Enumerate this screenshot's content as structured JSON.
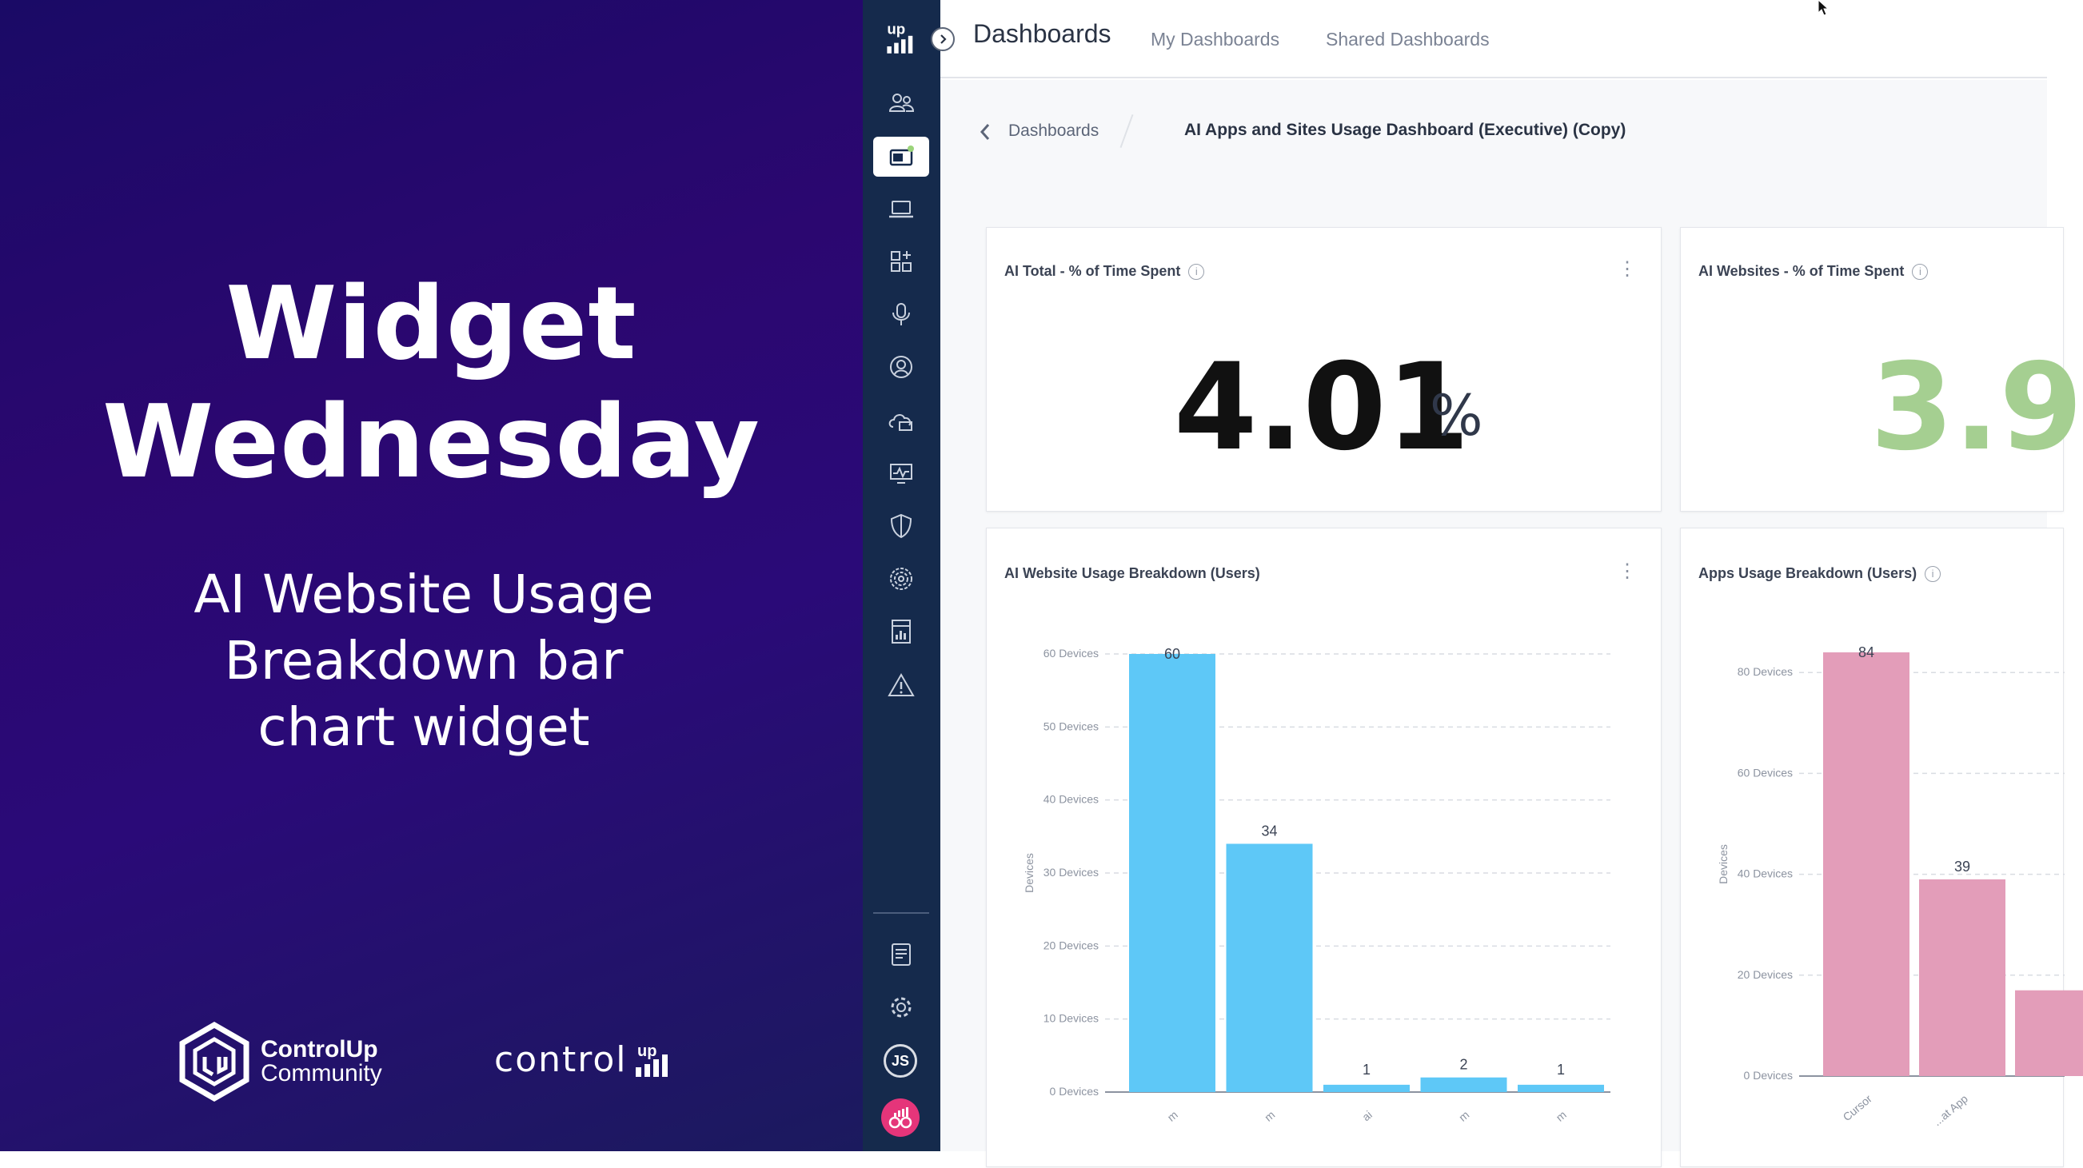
{
  "promo": {
    "title_line1": "Widget",
    "title_line2": "Wednesday",
    "subtitle_line1": "AI Website Usage",
    "subtitle_line2": "Breakdown bar",
    "subtitle_line3": "chart widget",
    "community_brand": "ControlUp",
    "community_label": "Community",
    "logo_word": "control"
  },
  "sidebar": {
    "items": [
      "users-icon",
      "dashboards-icon",
      "devices-icon",
      "apps-icon",
      "voice-icon",
      "user-profile-icon",
      "cloud-icon",
      "monitor-icon",
      "security-icon",
      "fingerprint-icon",
      "reports-icon",
      "alerts-icon"
    ],
    "bottom_items": [
      "logs-icon",
      "settings-icon"
    ],
    "user_initials": "JS"
  },
  "header": {
    "title": "Dashboards",
    "tabs": [
      "My Dashboards",
      "Shared Dashboards"
    ]
  },
  "breadcrumb": {
    "parent": "Dashboards",
    "current": "AI Apps and Sites Usage Dashboard (Executive) (Copy)"
  },
  "widgets": {
    "ai_total": {
      "title": "AI Total - % of Time Spent",
      "value": "4.01",
      "unit": "%"
    },
    "ai_websites": {
      "title": "AI Websites - % of Time Spent",
      "value": "3.9"
    },
    "ai_website_usage": {
      "title": "AI Website Usage Breakdown (Users)"
    },
    "apps_usage": {
      "title": "Apps Usage Breakdown (Users)"
    }
  },
  "colors": {
    "bar_blue": "#5ec8f7",
    "bar_pink": "#e39db9",
    "sidebar": "#152a4c",
    "kpi_green": "#a5cf91"
  },
  "chart_data": [
    {
      "type": "bar",
      "title": "AI Website Usage Breakdown (Users)",
      "ylabel": "Devices",
      "ylim": [
        0,
        60
      ],
      "y_ticks": [
        "0 Devices",
        "10 Devices",
        "20 Devices",
        "30 Devices",
        "40 Devices",
        "50 Devices",
        "60 Devices"
      ],
      "y_tick_values": [
        0,
        10,
        20,
        30,
        40,
        50,
        60
      ],
      "categories": [
        "m",
        "m",
        "ai",
        "m",
        "m"
      ],
      "values": [
        60,
        34,
        1,
        2,
        1
      ],
      "grid": true
    },
    {
      "type": "bar",
      "title": "Apps Usage Breakdown (Users)",
      "ylabel": "Devices",
      "ylim": [
        0,
        84
      ],
      "y_ticks": [
        "0 Devices",
        "20 Devices",
        "40 Devices",
        "60 Devices",
        "80 Devices"
      ],
      "y_tick_values": [
        0,
        20,
        40,
        60,
        80
      ],
      "categories": [
        "Cursor",
        "...at App",
        ""
      ],
      "values": [
        84,
        39,
        17
      ],
      "labeled": [
        true,
        true,
        false
      ],
      "grid": true
    }
  ]
}
